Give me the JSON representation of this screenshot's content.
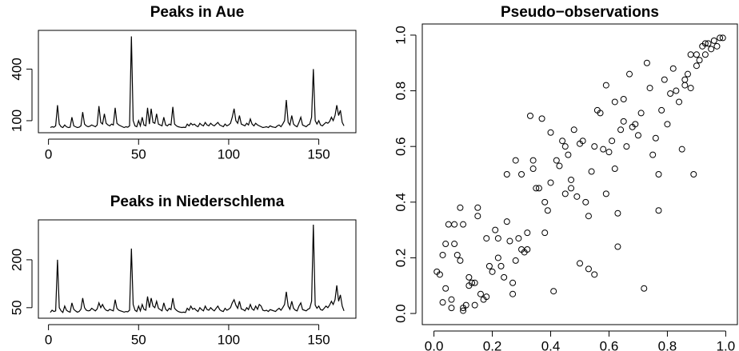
{
  "chart_data": [
    {
      "type": "line",
      "title": "Peaks in Aue",
      "color": "#000000",
      "x": [
        1,
        2,
        3,
        4,
        5,
        6,
        7,
        8,
        9,
        10,
        11,
        12,
        13,
        14,
        15,
        16,
        17,
        18,
        19,
        20,
        21,
        22,
        23,
        24,
        25,
        26,
        27,
        28,
        29,
        30,
        31,
        32,
        33,
        34,
        35,
        36,
        37,
        38,
        39,
        40,
        41,
        42,
        43,
        44,
        45,
        46,
        47,
        48,
        49,
        50,
        51,
        52,
        53,
        54,
        55,
        56,
        57,
        58,
        59,
        60,
        61,
        62,
        63,
        64,
        65,
        66,
        67,
        68,
        69,
        70,
        71,
        72,
        73,
        74,
        75,
        76,
        77,
        78,
        79,
        80,
        81,
        82,
        83,
        84,
        85,
        86,
        87,
        88,
        89,
        90,
        91,
        92,
        93,
        94,
        95,
        96,
        97,
        98,
        99,
        100,
        101,
        102,
        103,
        104,
        105,
        106,
        107,
        108,
        109,
        110,
        111,
        112,
        113,
        114,
        115,
        116,
        117,
        118,
        119,
        120,
        121,
        122,
        123,
        124,
        125,
        126,
        127,
        128,
        129,
        130,
        131,
        132,
        133,
        134,
        135,
        136,
        137,
        138,
        139,
        140,
        141,
        142,
        143,
        144,
        145,
        146,
        147,
        148,
        149,
        150,
        151,
        152,
        153,
        154,
        155,
        156,
        157,
        158,
        159,
        160,
        161,
        162,
        163,
        164
      ],
      "values": [
        60,
        65,
        62,
        70,
        190,
        80,
        65,
        60,
        75,
        65,
        60,
        62,
        120,
        70,
        65,
        60,
        62,
        70,
        150,
        80,
        70,
        65,
        68,
        75,
        70,
        65,
        75,
        185,
        90,
        80,
        140,
        85,
        75,
        70,
        80,
        75,
        175,
        85,
        75,
        70,
        65,
        60,
        65,
        62,
        70,
        590,
        100,
        70,
        65,
        100,
        70,
        120,
        75,
        70,
        175,
        80,
        170,
        90,
        85,
        140,
        80,
        75,
        70,
        120,
        75,
        70,
        80,
        75,
        180,
        80,
        70,
        65,
        62,
        60,
        62,
        60,
        80,
        70,
        85,
        75,
        80,
        70,
        65,
        85,
        75,
        70,
        90,
        75,
        70,
        85,
        75,
        70,
        80,
        90,
        75,
        70,
        65,
        80,
        70,
        75,
        85,
        120,
        170,
        100,
        85,
        130,
        80,
        75,
        70,
        85,
        75,
        110,
        80,
        70,
        85,
        75,
        70,
        65,
        60,
        62,
        65,
        60,
        70,
        65,
        62,
        60,
        70,
        75,
        65,
        80,
        100,
        220,
        90,
        75,
        130,
        80,
        70,
        65,
        90,
        120,
        75,
        70,
        65,
        75,
        80,
        120,
        400,
        100,
        80,
        100,
        75,
        70,
        80,
        90,
        85,
        95,
        120,
        100,
        130,
        190,
        130,
        160,
        90,
        70
      ],
      "xlim": [
        -5.6,
        170.6
      ],
      "xticks": [
        0,
        50,
        100,
        150
      ],
      "ylim": [
        30,
        625
      ],
      "yticks": [
        100,
        400
      ]
    },
    {
      "type": "line",
      "title": "Peaks in Niederschlema",
      "color": "#000000",
      "x": [
        1,
        2,
        3,
        4,
        5,
        6,
        7,
        8,
        9,
        10,
        11,
        12,
        13,
        14,
        15,
        16,
        17,
        18,
        19,
        20,
        21,
        22,
        23,
        24,
        25,
        26,
        27,
        28,
        29,
        30,
        31,
        32,
        33,
        34,
        35,
        36,
        37,
        38,
        39,
        40,
        41,
        42,
        43,
        44,
        45,
        46,
        47,
        48,
        49,
        50,
        51,
        52,
        53,
        54,
        55,
        56,
        57,
        58,
        59,
        60,
        61,
        62,
        63,
        64,
        65,
        66,
        67,
        68,
        69,
        70,
        71,
        72,
        73,
        74,
        75,
        76,
        77,
        78,
        79,
        80,
        81,
        82,
        83,
        84,
        85,
        86,
        87,
        88,
        89,
        90,
        91,
        92,
        93,
        94,
        95,
        96,
        97,
        98,
        99,
        100,
        101,
        102,
        103,
        104,
        105,
        106,
        107,
        108,
        109,
        110,
        111,
        112,
        113,
        114,
        115,
        116,
        117,
        118,
        119,
        120,
        121,
        122,
        123,
        124,
        125,
        126,
        127,
        128,
        129,
        130,
        131,
        132,
        133,
        134,
        135,
        136,
        137,
        138,
        139,
        140,
        141,
        142,
        143,
        144,
        145,
        146,
        147,
        148,
        149,
        150,
        151,
        152,
        153,
        154,
        155,
        156,
        157,
        158,
        159,
        160,
        161,
        162,
        163,
        164
      ],
      "values": [
        35,
        42,
        38,
        40,
        200,
        50,
        40,
        35,
        55,
        42,
        38,
        36,
        65,
        45,
        40,
        36,
        38,
        45,
        80,
        50,
        42,
        40,
        41,
        48,
        44,
        40,
        46,
        65,
        50,
        60,
        48,
        42,
        40,
        45,
        42,
        40,
        75,
        48,
        42,
        40,
        38,
        36,
        38,
        37,
        42,
        235,
        60,
        42,
        38,
        55,
        40,
        60,
        45,
        42,
        85,
        50,
        80,
        55,
        50,
        70,
        48,
        44,
        40,
        65,
        45,
        40,
        48,
        44,
        80,
        48,
        42,
        38,
        36,
        35,
        36,
        35,
        48,
        42,
        55,
        45,
        48,
        42,
        38,
        50,
        44,
        40,
        55,
        44,
        42,
        50,
        44,
        40,
        48,
        55,
        44,
        40,
        38,
        48,
        42,
        45,
        50,
        65,
        75,
        58,
        48,
        70,
        46,
        44,
        40,
        50,
        44,
        60,
        46,
        42,
        55,
        45,
        60,
        55,
        42,
        40,
        42,
        38,
        44,
        42,
        40,
        38,
        44,
        48,
        42,
        50,
        60,
        100,
        55,
        45,
        70,
        48,
        42,
        40,
        55,
        65,
        44,
        42,
        40,
        45,
        48,
        70,
        310,
        58,
        48,
        55,
        44,
        42,
        48,
        55,
        50,
        58,
        70,
        60,
        75,
        120,
        70,
        90,
        55,
        40
      ],
      "xlim": [
        -5.6,
        170.6
      ],
      "xticks": [
        0,
        50,
        100,
        150
      ],
      "ylim": [
        17,
        325
      ],
      "yticks": [
        50,
        200
      ]
    },
    {
      "type": "scatter",
      "title": "Pseudo−observations",
      "color": "#000000",
      "x": [
        0.01,
        0.02,
        0.03,
        0.03,
        0.04,
        0.04,
        0.05,
        0.06,
        0.06,
        0.07,
        0.07,
        0.08,
        0.09,
        0.09,
        0.1,
        0.1,
        0.1,
        0.11,
        0.12,
        0.12,
        0.13,
        0.14,
        0.14,
        0.15,
        0.15,
        0.16,
        0.17,
        0.18,
        0.18,
        0.19,
        0.2,
        0.21,
        0.22,
        0.22,
        0.23,
        0.24,
        0.25,
        0.25,
        0.26,
        0.27,
        0.27,
        0.28,
        0.28,
        0.29,
        0.3,
        0.3,
        0.31,
        0.32,
        0.32,
        0.33,
        0.34,
        0.34,
        0.35,
        0.36,
        0.37,
        0.38,
        0.38,
        0.39,
        0.4,
        0.4,
        0.41,
        0.42,
        0.43,
        0.44,
        0.45,
        0.45,
        0.46,
        0.47,
        0.47,
        0.48,
        0.49,
        0.5,
        0.5,
        0.51,
        0.52,
        0.53,
        0.53,
        0.54,
        0.55,
        0.55,
        0.56,
        0.57,
        0.58,
        0.59,
        0.59,
        0.6,
        0.61,
        0.62,
        0.62,
        0.63,
        0.63,
        0.64,
        0.65,
        0.65,
        0.66,
        0.67,
        0.68,
        0.69,
        0.7,
        0.71,
        0.72,
        0.73,
        0.74,
        0.75,
        0.76,
        0.77,
        0.77,
        0.78,
        0.79,
        0.8,
        0.81,
        0.82,
        0.83,
        0.84,
        0.85,
        0.86,
        0.87,
        0.88,
        0.89,
        0.9,
        0.91,
        0.92,
        0.93,
        0.94,
        0.95,
        0.96,
        0.97,
        0.98,
        0.99,
        0.9,
        0.93,
        0.86,
        0.88
      ],
      "y": [
        0.15,
        0.14,
        0.04,
        0.21,
        0.09,
        0.25,
        0.32,
        0.05,
        0.02,
        0.32,
        0.25,
        0.21,
        0.19,
        0.38,
        0.01,
        0.02,
        0.32,
        0.03,
        0.13,
        0.1,
        0.11,
        0.11,
        0.03,
        0.35,
        0.38,
        0.07,
        0.05,
        0.06,
        0.27,
        0.17,
        0.15,
        0.3,
        0.2,
        0.27,
        0.17,
        0.13,
        0.33,
        0.5,
        0.26,
        0.07,
        0.11,
        0.19,
        0.55,
        0.27,
        0.23,
        0.5,
        0.22,
        0.29,
        0.23,
        0.71,
        0.52,
        0.55,
        0.45,
        0.45,
        0.7,
        0.29,
        0.4,
        0.37,
        0.65,
        0.47,
        0.08,
        0.55,
        0.53,
        0.62,
        0.43,
        0.6,
        0.57,
        0.48,
        0.45,
        0.66,
        0.42,
        0.18,
        0.61,
        0.62,
        0.4,
        0.16,
        0.35,
        0.51,
        0.14,
        0.6,
        0.73,
        0.72,
        0.59,
        0.43,
        0.82,
        0.58,
        0.62,
        0.52,
        0.76,
        0.24,
        0.36,
        0.66,
        0.77,
        0.69,
        0.6,
        0.86,
        0.67,
        0.68,
        0.64,
        0.72,
        0.09,
        0.9,
        0.81,
        0.57,
        0.63,
        0.5,
        0.37,
        0.73,
        0.84,
        0.68,
        0.79,
        0.88,
        0.8,
        0.76,
        0.59,
        0.82,
        0.86,
        0.93,
        0.5,
        0.89,
        0.91,
        0.96,
        0.93,
        0.97,
        0.95,
        0.98,
        0.96,
        0.99,
        0.99,
        0.93,
        0.97,
        0.84,
        0.81
      ],
      "xlim": [
        -0.04,
        1.04
      ],
      "xticks": [
        {
          "value": 0,
          "label": "0.0"
        },
        0.2,
        0.4,
        0.6,
        0.8,
        {
          "value": 1,
          "label": "1.0"
        }
      ],
      "ylim": [
        -0.04,
        1.04
      ],
      "yticks": [
        {
          "value": 0,
          "label": "0.0"
        },
        0.2,
        0.4,
        0.6,
        0.8,
        {
          "value": 1,
          "label": "1.0"
        }
      ]
    }
  ]
}
